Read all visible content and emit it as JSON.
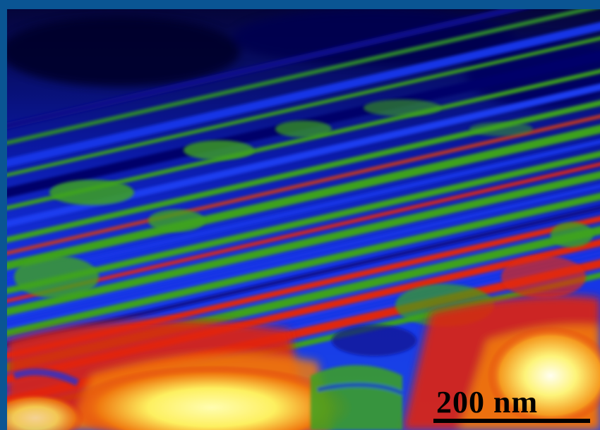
{
  "figure": {
    "image_description_name": "false-color-micrograph",
    "scale_bar": {
      "label": "200 nm"
    },
    "colors": {
      "frame": "#0a5593",
      "deep_blue": "#0a0a8a",
      "blue": "#1634e6",
      "green": "#3da21e",
      "red": "#e0260f",
      "orange": "#f07a10",
      "yellow": "#fdfa6a",
      "dark": "#000020"
    }
  }
}
